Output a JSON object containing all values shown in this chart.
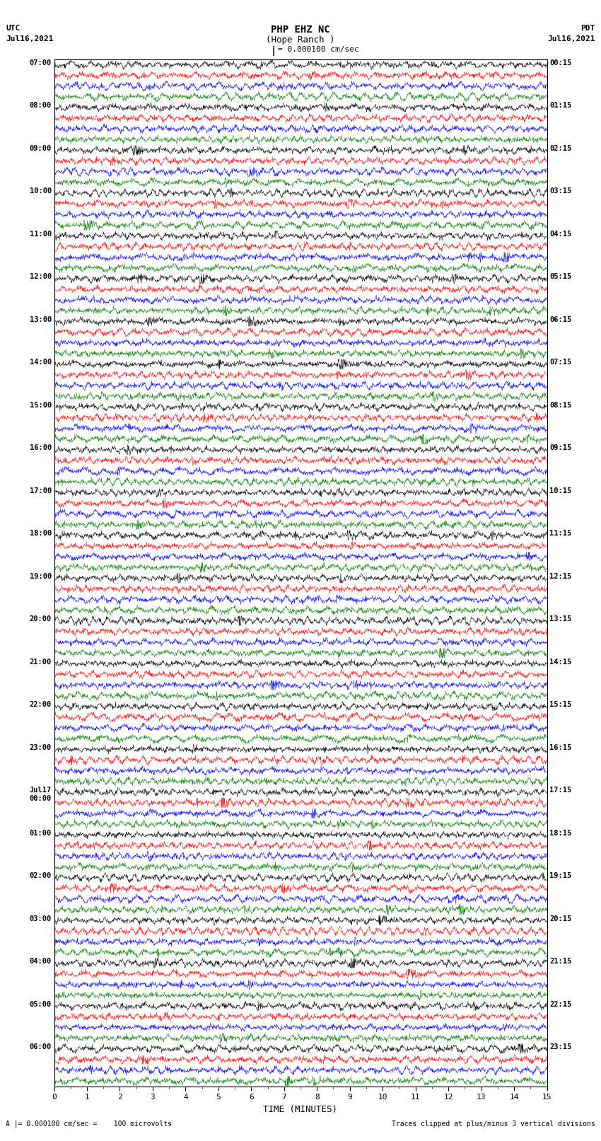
{
  "title_line1": "PHP EHZ NC",
  "title_line2": "(Hope Ranch )",
  "scale_label": "= 0.000100 cm/sec",
  "bottom_label_left": "= 0.000100 cm/sec =    100 microvolts",
  "bottom_label_right": "Traces clipped at plus/minus 3 vertical divisions",
  "xlabel": "TIME (MINUTES)",
  "left_header": "UTC",
  "left_date": "Jul16,2021",
  "right_header": "PDT",
  "right_date": "Jul16,2021",
  "utc_times": [
    "07:00",
    "08:00",
    "09:00",
    "10:00",
    "11:00",
    "12:00",
    "13:00",
    "14:00",
    "15:00",
    "16:00",
    "17:00",
    "18:00",
    "19:00",
    "20:00",
    "21:00",
    "22:00",
    "23:00",
    "Jul17\n00:00",
    "01:00",
    "02:00",
    "03:00",
    "04:00",
    "05:00",
    "06:00"
  ],
  "pdt_times": [
    "00:15",
    "01:15",
    "02:15",
    "03:15",
    "04:15",
    "05:15",
    "06:15",
    "07:15",
    "08:15",
    "09:15",
    "10:15",
    "11:15",
    "12:15",
    "13:15",
    "14:15",
    "15:15",
    "16:15",
    "17:15",
    "18:15",
    "19:15",
    "20:15",
    "21:15",
    "22:15",
    "23:15"
  ],
  "n_rows": 24,
  "n_traces_per_row": 4,
  "trace_colors": [
    "black",
    "red",
    "blue",
    "green"
  ],
  "bg_color": "white",
  "plot_bg": "white",
  "minutes": 15,
  "figwidth": 8.5,
  "figheight": 16.13,
  "dpi": 100,
  "noise_seed": 42
}
